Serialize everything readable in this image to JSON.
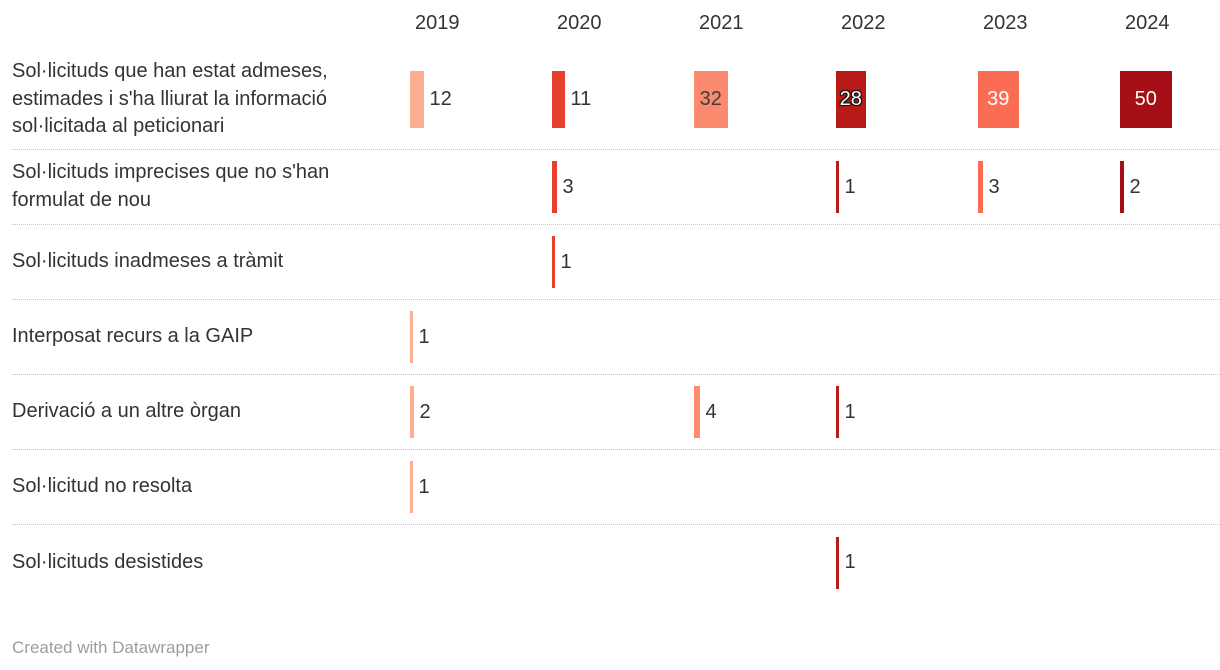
{
  "header": {
    "years": [
      "2019",
      "2020",
      "2021",
      "2022",
      "2023",
      "2024"
    ]
  },
  "columns": [
    {
      "year": "2019",
      "color": "#fcae91"
    },
    {
      "year": "2020",
      "color": "#e8402f"
    },
    {
      "year": "2021",
      "color": "#fb8a6e"
    },
    {
      "year": "2022",
      "color": "#b81a18"
    },
    {
      "year": "2023",
      "color": "#fb6d52"
    },
    {
      "year": "2024",
      "color": "#a50f15"
    }
  ],
  "rows": [
    {
      "label": "Sol·licituds que han estat admeses, estimades i s'ha lliurat la informació sol·licitada al peticionari",
      "cells": [
        {
          "v": 12,
          "pos": "out"
        },
        {
          "v": 11,
          "pos": "out"
        },
        {
          "v": 32,
          "pos": "in",
          "text": "dark"
        },
        {
          "v": 28,
          "pos": "in",
          "text": "halo"
        },
        {
          "v": 39,
          "pos": "in",
          "text": "white"
        },
        {
          "v": 50,
          "pos": "in",
          "text": "white"
        }
      ]
    },
    {
      "label": "Sol·licituds imprecises que no s'han formulat de nou",
      "cells": [
        null,
        {
          "v": 3,
          "pos": "out"
        },
        null,
        {
          "v": 1,
          "pos": "out"
        },
        {
          "v": 3,
          "pos": "out"
        },
        {
          "v": 2,
          "pos": "out"
        }
      ]
    },
    {
      "label": "Sol·licituds inadmeses a tràmit",
      "cells": [
        null,
        {
          "v": 1,
          "pos": "out"
        },
        null,
        null,
        null,
        null
      ]
    },
    {
      "label": "Interposat recurs a la GAIP",
      "cells": [
        {
          "v": 1,
          "pos": "out"
        },
        null,
        null,
        null,
        null,
        null
      ]
    },
    {
      "label": "Derivació a un altre òrgan",
      "cells": [
        {
          "v": 2,
          "pos": "out"
        },
        null,
        {
          "v": 4,
          "pos": "out"
        },
        {
          "v": 1,
          "pos": "out"
        },
        null,
        null
      ]
    },
    {
      "label": "Sol·licitud no resolta",
      "cells": [
        {
          "v": 1,
          "pos": "out"
        },
        null,
        null,
        null,
        null,
        null
      ]
    },
    {
      "label": "Sol·licituds desistides",
      "cells": [
        null,
        null,
        null,
        {
          "v": 1,
          "pos": "out"
        },
        null,
        null
      ]
    }
  ],
  "footer": {
    "credit": "Created with Datawrapper"
  },
  "chart_data": {
    "type": "bar",
    "variant": "split-bars-table",
    "title": "",
    "categories": [
      "2019",
      "2020",
      "2021",
      "2022",
      "2023",
      "2024"
    ],
    "series": [
      {
        "name": "Sol·licituds que han estat admeses, estimades i s'ha lliurat la informació sol·licitada al peticionari",
        "values": [
          12,
          11,
          32,
          28,
          39,
          50
        ]
      },
      {
        "name": "Sol·licituds imprecises que no s'han formulat de nou",
        "values": [
          null,
          3,
          null,
          1,
          3,
          2
        ]
      },
      {
        "name": "Sol·licituds inadmeses a tràmit",
        "values": [
          null,
          1,
          null,
          null,
          null,
          null
        ]
      },
      {
        "name": "Interposat recurs a la GAIP",
        "values": [
          1,
          null,
          null,
          null,
          null,
          null
        ]
      },
      {
        "name": "Derivació a un altre òrgan",
        "values": [
          2,
          null,
          4,
          1,
          null,
          null
        ]
      },
      {
        "name": "Sol·licitud no resolta",
        "values": [
          1,
          null,
          null,
          null,
          null,
          null
        ]
      },
      {
        "name": "Sol·licituds desistides",
        "values": [
          null,
          null,
          null,
          1,
          null,
          null
        ]
      }
    ],
    "column_colors": [
      "#fcae91",
      "#e8402f",
      "#fb8a6e",
      "#b81a18",
      "#fb6d52",
      "#a50f15"
    ],
    "value_range": [
      0,
      50
    ],
    "grid": false,
    "legend_position": "none",
    "credit": "Created with Datawrapper"
  }
}
